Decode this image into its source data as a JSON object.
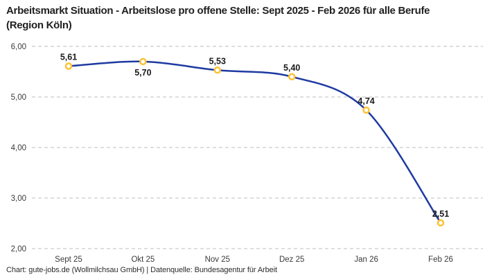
{
  "title": "Arbeitsmarkt Situation - Arbeitslose pro offene Stelle: Sept 2025 - Feb 2026 für alle Berufe (Region Köln)",
  "footer": "Chart: gute-jobs.de (Wollmilchsau GmbH) | Datenquelle: Bundesagentur für Arbeit",
  "chart_data": {
    "type": "line",
    "title": "Arbeitsmarkt Situation - Arbeitslose pro offene Stelle: Sept 2025 - Feb 2026 für alle Berufe (Region Köln)",
    "categories": [
      "Sept 25",
      "Okt 25",
      "Nov 25",
      "Dez 25",
      "Jan 26",
      "Feb 26"
    ],
    "values": [
      5.61,
      5.7,
      5.53,
      5.4,
      4.74,
      2.51
    ],
    "point_labels": [
      "5,61",
      "5,70",
      "5,53",
      "5,40",
      "4,74",
      "2,51"
    ],
    "label_positions": [
      "above",
      "below",
      "above",
      "above",
      "above",
      "above"
    ],
    "xlabel": "",
    "ylabel": "",
    "ylim": [
      2,
      6
    ],
    "y_ticks": {
      "values": [
        6,
        5,
        4,
        3,
        2
      ],
      "labels": [
        "6,00",
        "5,00",
        "4,00",
        "3,00",
        "2,00"
      ]
    },
    "grid": "horizontal-dashed",
    "legend": "none",
    "colors": {
      "line": "#1e3aa0",
      "marker_stroke": "#fdc132",
      "marker_fill": "#ffffff",
      "grid": "#c9c9c9",
      "point_label": "#1a1a1a",
      "axis_text": "#3a3a3a"
    }
  }
}
